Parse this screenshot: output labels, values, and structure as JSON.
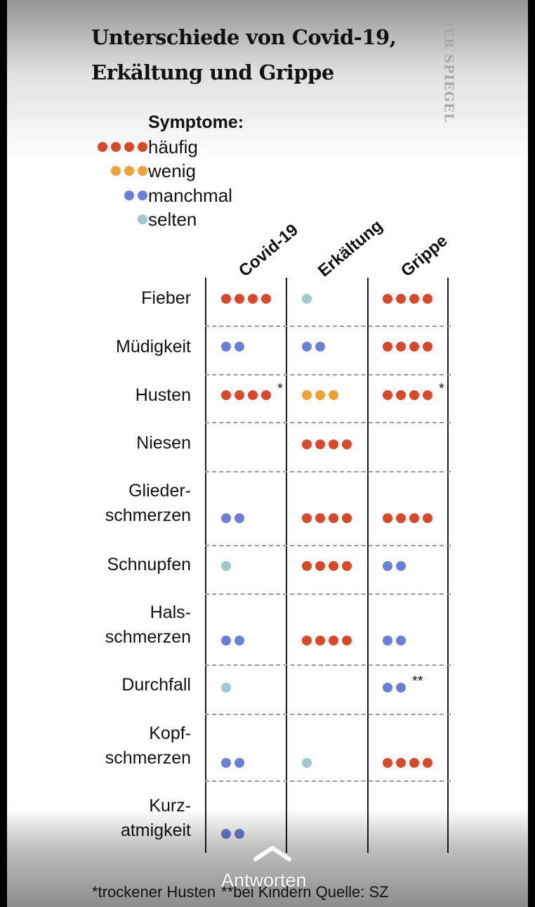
{
  "title": {
    "line1": "Unterschiede von Covid-19,",
    "line2": "Erkältung und Grippe"
  },
  "brand": "DER SPIEGEL",
  "legend": {
    "title": "Symptome:",
    "items": [
      {
        "label": "häufig",
        "dots": 4,
        "color": "#d9482b"
      },
      {
        "label": "wenig",
        "dots": 3,
        "color": "#f0a23a"
      },
      {
        "label": "manchmal",
        "dots": 2,
        "color": "#6b7fd8"
      },
      {
        "label": "selten",
        "dots": 1,
        "color": "#9fc8cf"
      }
    ]
  },
  "footnote": {
    "part1": "*trockener Husten",
    "part2": "**bei Kindern Quelle: SZ"
  },
  "overlay": {
    "reply_label": "Antworten",
    "reply_icon": "chevron-up-icon"
  },
  "chart_data": {
    "type": "table",
    "columns": [
      "Covid-19",
      "Erkältung",
      "Grippe"
    ],
    "rows": [
      {
        "symptom": "Fieber",
        "lines": [
          "Fieber"
        ],
        "values": [
          4,
          1,
          4
        ],
        "marks": [
          "",
          "",
          ""
        ]
      },
      {
        "symptom": "Müdigkeit",
        "lines": [
          "Müdigkeit"
        ],
        "values": [
          2,
          2,
          4
        ],
        "marks": [
          "",
          "",
          ""
        ]
      },
      {
        "symptom": "Husten",
        "lines": [
          "Husten"
        ],
        "values": [
          4,
          3,
          4
        ],
        "marks": [
          "*",
          "",
          "*"
        ]
      },
      {
        "symptom": "Niesen",
        "lines": [
          "Niesen"
        ],
        "values": [
          0,
          4,
          0
        ],
        "marks": [
          "",
          "",
          ""
        ]
      },
      {
        "symptom": "Glieder-schmerzen",
        "lines": [
          "Glieder-",
          "schmerzen"
        ],
        "values": [
          2,
          4,
          4
        ],
        "marks": [
          "",
          "",
          ""
        ]
      },
      {
        "symptom": "Schnupfen",
        "lines": [
          "Schnupfen"
        ],
        "values": [
          1,
          4,
          2
        ],
        "marks": [
          "",
          "",
          ""
        ]
      },
      {
        "symptom": "Hals-schmerzen",
        "lines": [
          "Hals-",
          "schmerzen"
        ],
        "values": [
          2,
          4,
          2
        ],
        "marks": [
          "",
          "",
          ""
        ]
      },
      {
        "symptom": "Durchfall",
        "lines": [
          "Durchfall"
        ],
        "values": [
          1,
          0,
          2
        ],
        "marks": [
          "",
          "",
          "**"
        ]
      },
      {
        "symptom": "Kopf-schmerzen",
        "lines": [
          "Kopf-",
          "schmerzen"
        ],
        "values": [
          2,
          1,
          4
        ],
        "marks": [
          "",
          "",
          ""
        ]
      },
      {
        "symptom": "Kurz-atmigkeit",
        "lines": [
          "Kurz-",
          "atmigkeit"
        ],
        "values": [
          2,
          0,
          0
        ],
        "marks": [
          "",
          "",
          ""
        ]
      }
    ],
    "scale": {
      "4": "häufig",
      "3": "wenig",
      "2": "manchmal",
      "1": "selten",
      "0": ""
    }
  }
}
